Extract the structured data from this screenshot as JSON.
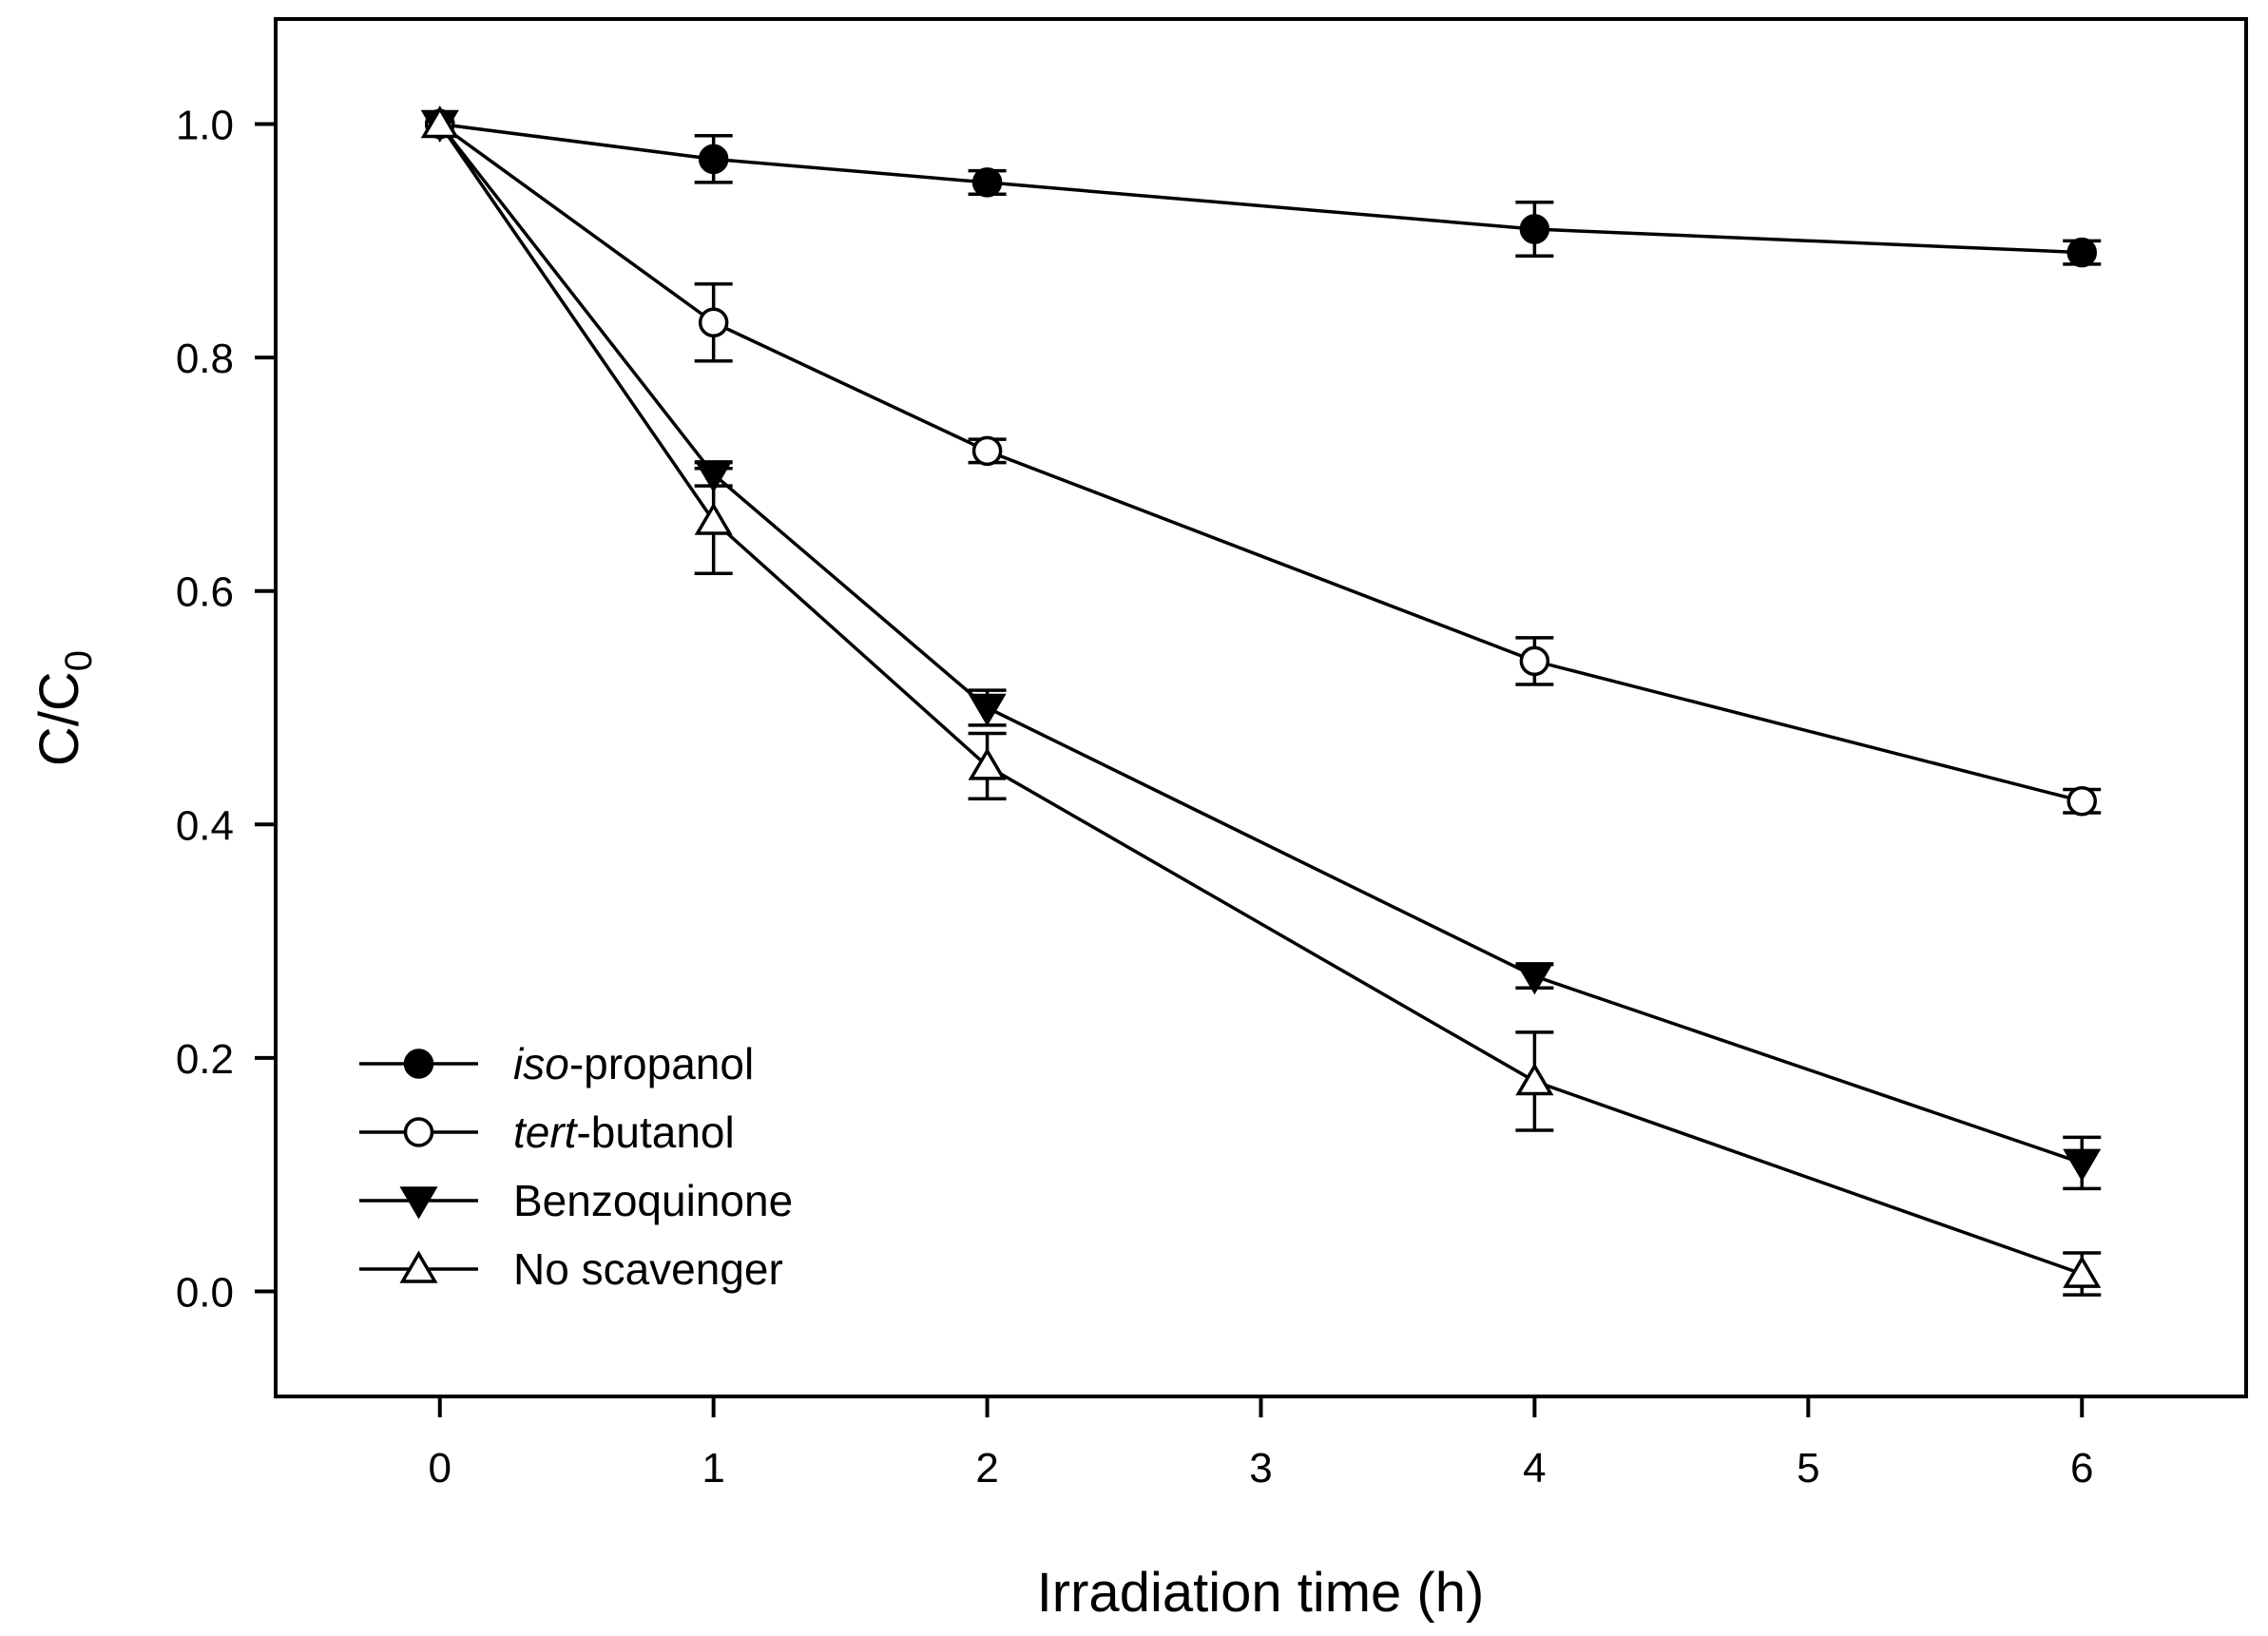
{
  "chart_data": {
    "type": "line",
    "title": "",
    "xlabel": "Irradiation time (h)",
    "ylabel": {
      "main": "C/C",
      "sub": "0"
    },
    "xlim": [
      -0.6,
      6.6
    ],
    "ylim": [
      -0.09,
      1.09
    ],
    "xticks": [
      0,
      1,
      2,
      3,
      4,
      5,
      6
    ],
    "yticks": [
      0.0,
      0.2,
      0.4,
      0.6,
      0.8,
      1.0
    ],
    "ytick_labels": [
      "0.0",
      "0.2",
      "0.4",
      "0.6",
      "0.8",
      "1.0"
    ],
    "grid": false,
    "legend_position": "bottom-left",
    "series": [
      {
        "name": "iso-propanol",
        "legend_italic": "iso",
        "legend_rest": "-propanol",
        "marker": "filled-circle",
        "x": [
          0,
          1,
          2,
          4,
          6
        ],
        "y": [
          1.0,
          0.97,
          0.95,
          0.91,
          0.89
        ],
        "err": [
          0.005,
          0.02,
          0.01,
          0.023,
          0.01
        ]
      },
      {
        "name": "tert-butanol",
        "legend_italic": "tert",
        "legend_rest": "-butanol",
        "marker": "open-circle",
        "x": [
          0,
          1,
          2,
          4,
          6
        ],
        "y": [
          1.0,
          0.83,
          0.72,
          0.54,
          0.42
        ],
        "err": [
          0.005,
          0.033,
          0.01,
          0.02,
          0.01
        ]
      },
      {
        "name": "Benzoquinone",
        "legend_italic": "",
        "legend_rest": "Benzoquinone",
        "marker": "filled-triangle-down",
        "x": [
          0,
          1,
          2,
          4,
          6
        ],
        "y": [
          1.0,
          0.7,
          0.5,
          0.27,
          0.11
        ],
        "err": [
          0.005,
          0.01,
          0.015,
          0.01,
          0.022
        ]
      },
      {
        "name": "No scavenger",
        "legend_italic": "",
        "legend_rest": "No scavenger",
        "marker": "open-triangle-up",
        "x": [
          0,
          1,
          2,
          4,
          6
        ],
        "y": [
          1.0,
          0.66,
          0.45,
          0.18,
          0.015
        ],
        "err": [
          0.005,
          0.045,
          0.028,
          0.042,
          0.018
        ]
      }
    ]
  }
}
